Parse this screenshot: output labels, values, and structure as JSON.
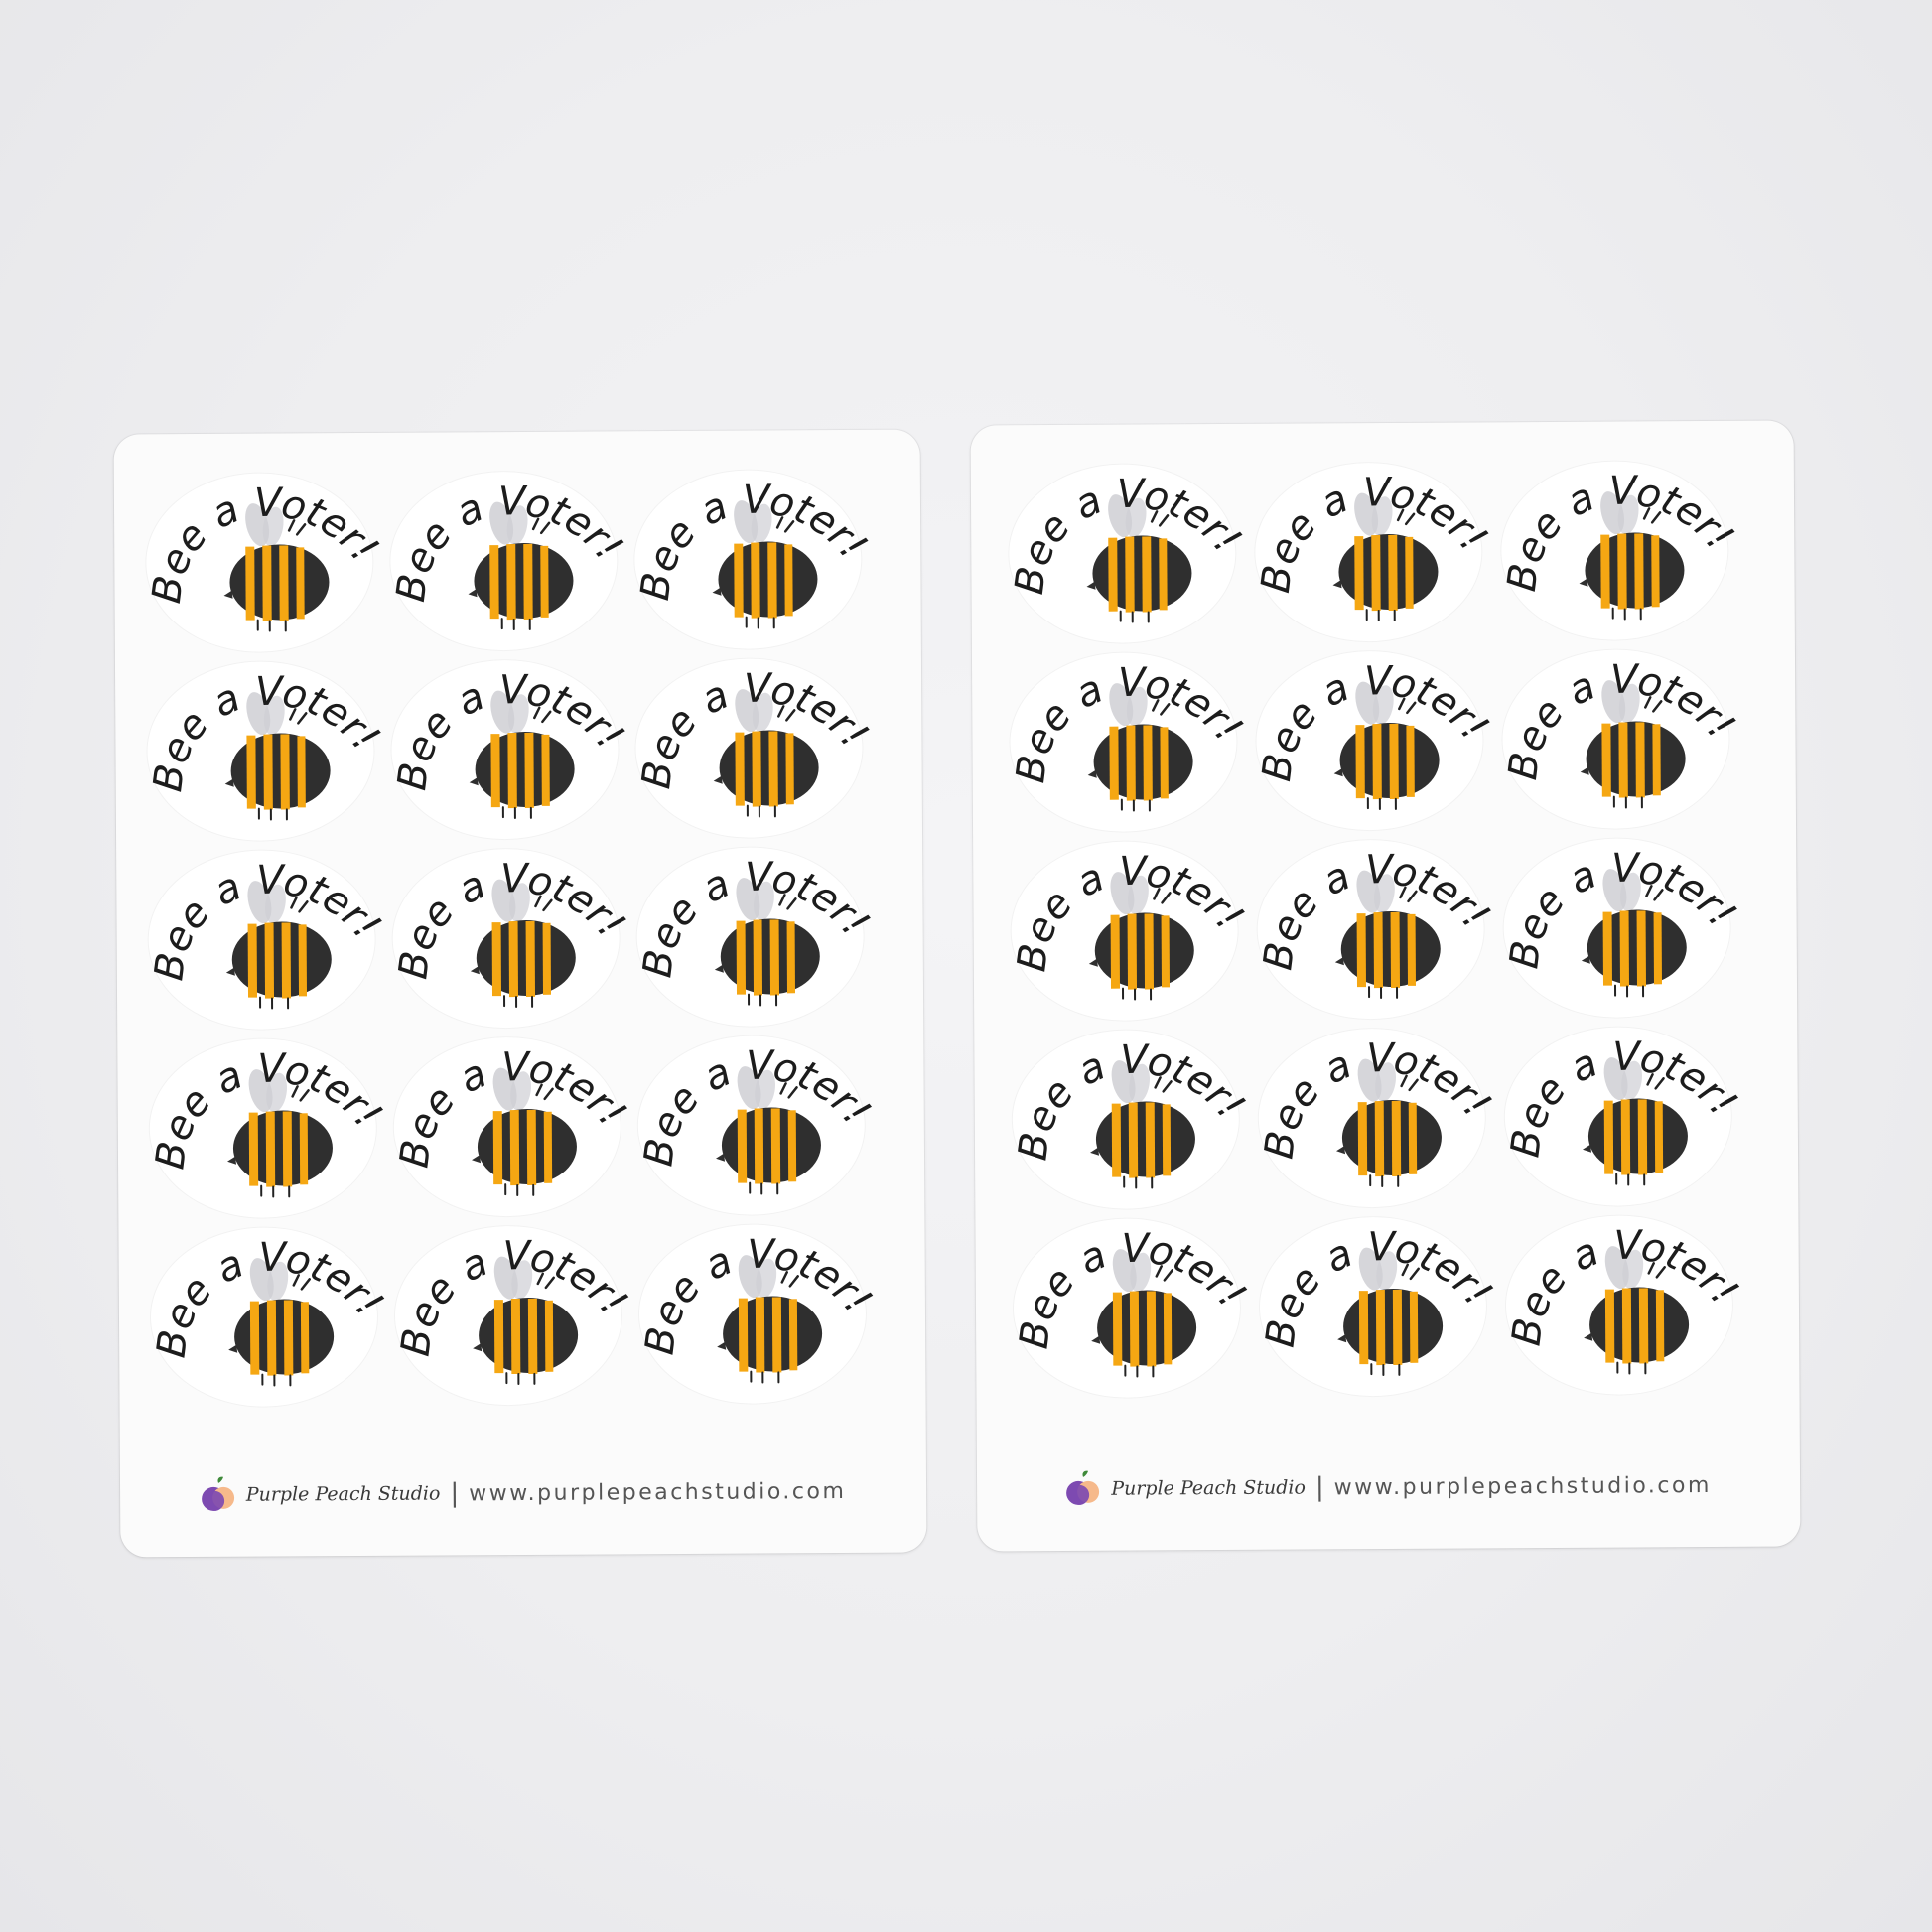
{
  "sticker_text": "Bee a Voter!",
  "colors": {
    "bee_yellow": "#f5a713",
    "bee_body": "#2f2f2f",
    "wing": "#cfcfd4",
    "logo_purple": "#7d4ab1",
    "logo_peach": "#f6b98b",
    "logo_leaf": "#3f8a3a"
  },
  "sheets": [
    {
      "rows": 5,
      "columns": 3,
      "footer": {
        "brand": "Purple Peach Studio",
        "separator": "|",
        "url": "www.purplepeachstudio.com",
        "logo_icon": "peach-logo-icon"
      }
    },
    {
      "rows": 5,
      "columns": 3,
      "footer": {
        "brand": "Purple Peach Studio",
        "separator": "|",
        "url": "www.purplepeachstudio.com",
        "logo_icon": "peach-logo-icon"
      }
    }
  ]
}
